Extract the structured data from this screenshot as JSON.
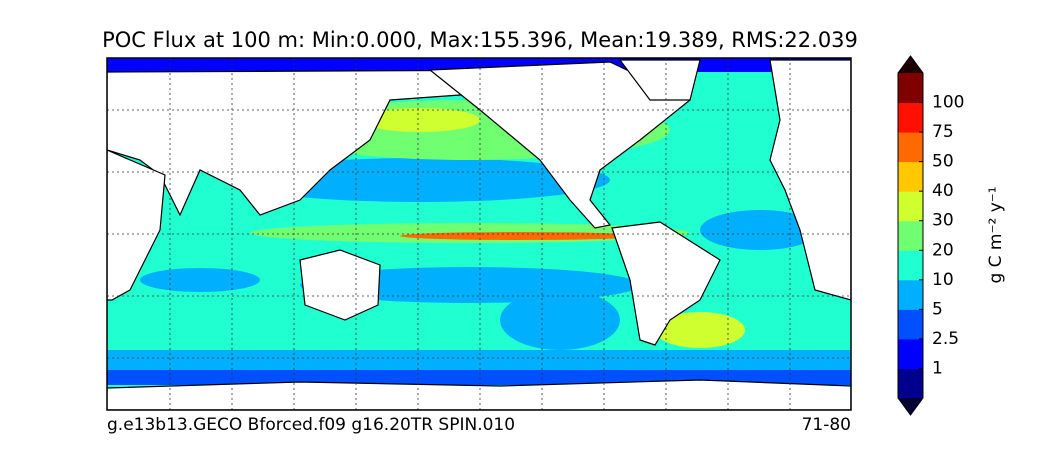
{
  "title": "POC Flux at 100 m: Min:0.000, Max:155.396, Mean:19.389, RMS:22.039",
  "footer": {
    "left": "g.e13b13.GECO Bforced.f09 g16.20TR SPIN.010",
    "right": "71-80"
  },
  "colorbar": {
    "label": "g C m⁻² y⁻¹",
    "ticks": [
      1,
      2.5,
      5,
      10,
      20,
      30,
      40,
      50,
      75,
      100
    ],
    "colors": [
      "#00008f",
      "#0000ff",
      "#0050ff",
      "#00b0ff",
      "#20ffd0",
      "#70ff70",
      "#d0ff30",
      "#ffc800",
      "#ff6a00",
      "#ff1000",
      "#800000"
    ],
    "extend_colors": [
      "#000033",
      "#1a0000"
    ]
  }
}
